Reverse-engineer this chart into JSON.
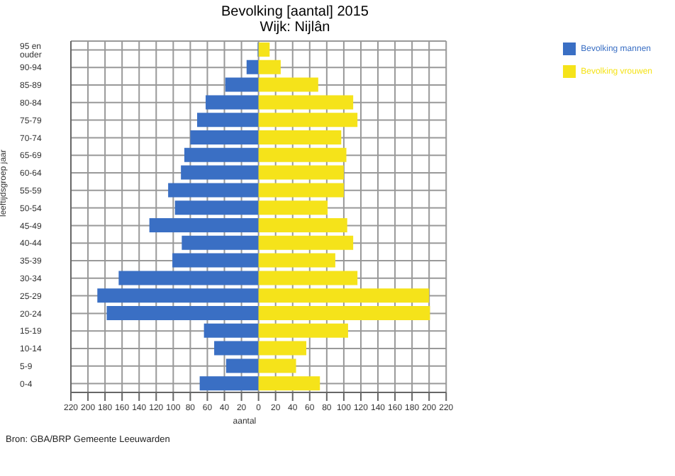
{
  "chart_data": {
    "type": "bar",
    "orientation": "horizontal",
    "stacked": true,
    "title": "Bevolking [aantal] 2015",
    "subtitle": "Wijk: Nijlân",
    "xlabel": "aantal",
    "ylabel": "leeftijdsgroep jaar",
    "categories": [
      "95 en ouder",
      "90-94",
      "85-89",
      "80-84",
      "75-79",
      "70-74",
      "65-69",
      "60-64",
      "55-59",
      "50-54",
      "45-49",
      "40-44",
      "35-39",
      "30-34",
      "25-29",
      "20-24",
      "15-19",
      "10-14",
      "5-9",
      "0-4"
    ],
    "series": [
      {
        "name": "Bevolking mannen",
        "color": "#3a6fc4",
        "values": [
          -1,
          -14,
          -39,
          -62,
          -72,
          -80,
          -87,
          -91,
          -106,
          -98,
          -128,
          -90,
          -101,
          -164,
          -189,
          -178,
          -64,
          -52,
          -38,
          -69
        ]
      },
      {
        "name": "Bevolking vrouwen",
        "color": "#f5e31a",
        "values": [
          13,
          26,
          70,
          111,
          116,
          97,
          103,
          100,
          100,
          81,
          104,
          111,
          90,
          116,
          200,
          201,
          105,
          56,
          44,
          72
        ]
      }
    ],
    "xlim": [
      -220,
      220
    ],
    "xticks": [
      {
        "value": -220,
        "label": "220"
      },
      {
        "value": -200,
        "label": "200"
      },
      {
        "value": -180,
        "label": "180"
      },
      {
        "value": -160,
        "label": "160"
      },
      {
        "value": -140,
        "label": "140"
      },
      {
        "value": -120,
        "label": "120"
      },
      {
        "value": -100,
        "label": "100"
      },
      {
        "value": -80,
        "label": "80"
      },
      {
        "value": -60,
        "label": "60"
      },
      {
        "value": -40,
        "label": "40"
      },
      {
        "value": -20,
        "label": "20"
      },
      0,
      20,
      40,
      60,
      80,
      100,
      120,
      140,
      160,
      180,
      200,
      220
    ],
    "grid": true,
    "legend": "top right",
    "annotations": [
      "Bron: GBA/BRP Gemeente Leeuwarden"
    ]
  }
}
